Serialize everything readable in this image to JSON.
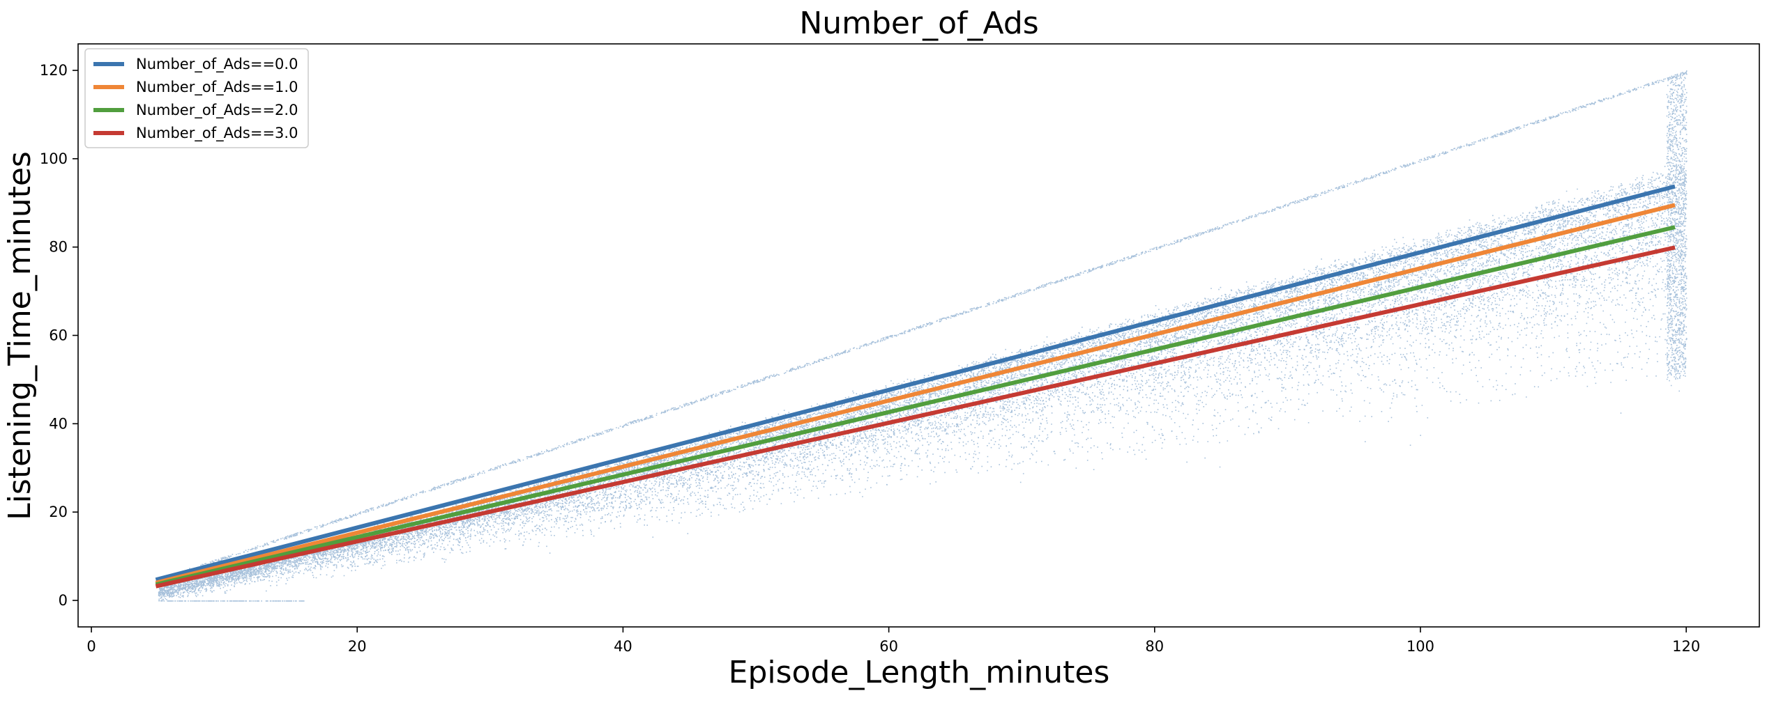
{
  "chart_data": {
    "type": "scatter",
    "title": "Number_of_Ads",
    "xlabel": "Episode_Length_minutes",
    "ylabel": "Listening_Time_minutes",
    "xlim": [
      -1,
      125.5
    ],
    "ylim": [
      -6,
      126
    ],
    "xticks": [
      0,
      20,
      40,
      60,
      80,
      100,
      120
    ],
    "yticks": [
      0,
      20,
      40,
      60,
      80,
      100,
      120
    ],
    "xtick_labels": [
      "0",
      "20",
      "40",
      "60",
      "80",
      "100",
      "120"
    ],
    "ytick_labels": [
      "0",
      "20",
      "40",
      "60",
      "80",
      "100",
      "120"
    ],
    "grid": false,
    "legend_position": "top-left",
    "scatter": {
      "color": "#3b75af",
      "x_range": [
        5,
        120
      ],
      "upper_bound": "y = x",
      "lower_bound": "y = 0.4x (approx)",
      "zero_floor_x_range": [
        5,
        16
      ]
    },
    "series": [
      {
        "name": "Number_of_Ads==0.0",
        "color": "#3b75af",
        "x": [
          5,
          119
        ],
        "y": [
          4.8,
          93.6
        ]
      },
      {
        "name": "Number_of_Ads==1.0",
        "color": "#ef8636",
        "x": [
          5,
          119
        ],
        "y": [
          4.1,
          89.4
        ]
      },
      {
        "name": "Number_of_Ads==2.0",
        "color": "#519e3e",
        "x": [
          5,
          119
        ],
        "y": [
          3.7,
          84.4
        ]
      },
      {
        "name": "Number_of_Ads==3.0",
        "color": "#c53a32",
        "x": [
          5,
          119
        ],
        "y": [
          3.3,
          79.8
        ]
      }
    ]
  }
}
